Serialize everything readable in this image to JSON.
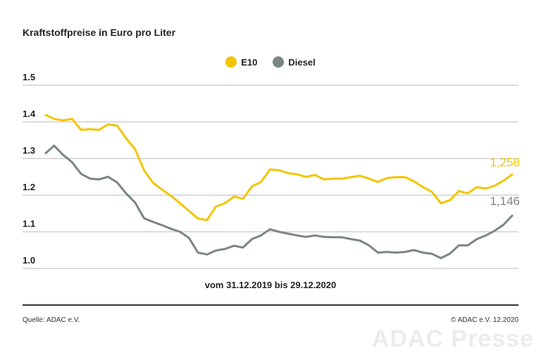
{
  "title": "Kraftstoffpreise in Euro pro Liter",
  "subtitle": "vom 31.12.2019 bis 29.12.2020",
  "source": "Quelle: ADAC e.V.",
  "copyright": "© ADAC e.V. 12.2020",
  "watermark": "ADAC Presse",
  "chart_data": {
    "type": "line",
    "title": "Kraftstoffpreise in Euro pro Liter",
    "ylim": [
      1.0,
      1.5
    ],
    "yticks": [
      "1.5",
      "1.4",
      "1.3",
      "1.2",
      "1.1",
      "1.0"
    ],
    "grid": true,
    "legend": "top-center",
    "series": [
      {
        "name": "E10",
        "color": "#f2c500",
        "end_label": "1,258",
        "values": [
          1.42,
          1.408,
          1.404,
          1.408,
          1.378,
          1.38,
          1.378,
          1.393,
          1.39,
          1.355,
          1.326,
          1.268,
          1.234,
          1.215,
          1.198,
          1.178,
          1.157,
          1.136,
          1.132,
          1.169,
          1.178,
          1.196,
          1.19,
          1.224,
          1.236,
          1.27,
          1.268,
          1.26,
          1.257,
          1.25,
          1.255,
          1.243,
          1.245,
          1.245,
          1.249,
          1.253,
          1.245,
          1.236,
          1.247,
          1.249,
          1.249,
          1.238,
          1.222,
          1.209,
          1.178,
          1.186,
          1.211,
          1.205,
          1.222,
          1.218,
          1.226,
          1.24,
          1.258
        ]
      },
      {
        "name": "Diesel",
        "color": "#7a8683",
        "end_label": "1,146",
        "values": [
          1.313,
          1.335,
          1.31,
          1.29,
          1.258,
          1.245,
          1.243,
          1.25,
          1.235,
          1.205,
          1.18,
          1.137,
          1.127,
          1.118,
          1.108,
          1.1,
          1.083,
          1.043,
          1.038,
          1.049,
          1.053,
          1.062,
          1.057,
          1.08,
          1.09,
          1.107,
          1.1,
          1.095,
          1.09,
          1.086,
          1.09,
          1.086,
          1.085,
          1.085,
          1.08,
          1.076,
          1.063,
          1.043,
          1.045,
          1.043,
          1.045,
          1.05,
          1.043,
          1.04,
          1.028,
          1.04,
          1.063,
          1.063,
          1.08,
          1.09,
          1.103,
          1.12,
          1.146
        ]
      }
    ]
  }
}
